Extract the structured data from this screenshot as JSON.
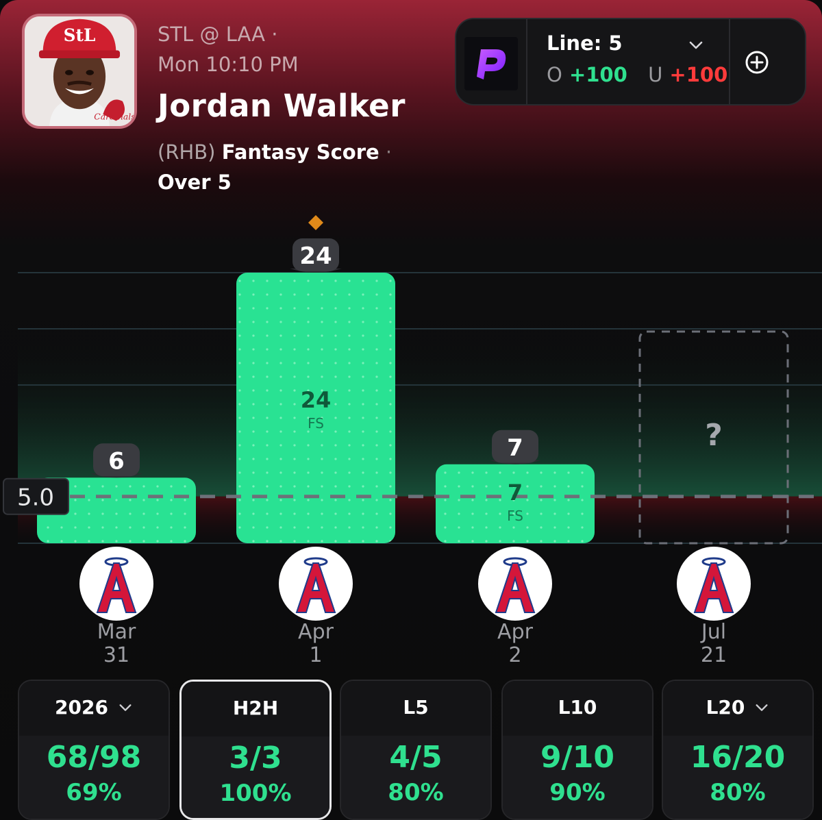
{
  "header": {
    "matchup": "STL @ LAA ·",
    "game_time": "Mon 10:10 PM",
    "player_name": "Jordan Walker",
    "handedness": "(RHB)",
    "stat_type": "Fantasy Score",
    "separator": "·",
    "pick": "Over 5"
  },
  "book": {
    "logo_icon": "prizepicks-logo-icon",
    "line_label": "Line: 5",
    "over_label": "O",
    "over_odds": "+100",
    "under_label": "U",
    "under_odds": "+100",
    "add_icon": "plus-circle-icon",
    "chevron_icon": "chevron-down-icon"
  },
  "colors": {
    "accent_green": "#2fe08f",
    "under_red": "#ff3b3b",
    "bar_green": "#29e293",
    "marker_orange": "#e08a1a"
  },
  "chart_data": {
    "type": "bar",
    "categories": [
      "Mar 31",
      "Apr 1",
      "Apr 2",
      "Jul 21"
    ],
    "values": [
      6,
      24,
      7,
      null
    ],
    "line": 5.0,
    "line_label": "5.0",
    "bar_unit_label": "FS",
    "upcoming_label": "?",
    "ylim": [
      0,
      25
    ],
    "gridlines": true,
    "opponent": "LAA"
  },
  "games": [
    {
      "month": "Mar",
      "day": "31",
      "value": "6",
      "fs_label": ""
    },
    {
      "month": "Apr",
      "day": "1",
      "value": "24",
      "fs_label": "FS"
    },
    {
      "month": "Apr",
      "day": "2",
      "value": "7",
      "fs_label": "FS"
    },
    {
      "month": "Jul",
      "day": "21",
      "value": "?",
      "fs_label": ""
    }
  ],
  "tiles": [
    {
      "label": "2026",
      "fraction": "68/98",
      "percent": "69%",
      "dropdown": true,
      "selected": false
    },
    {
      "label": "H2H",
      "fraction": "3/3",
      "percent": "100%",
      "dropdown": false,
      "selected": true
    },
    {
      "label": "L5",
      "fraction": "4/5",
      "percent": "80%",
      "dropdown": false,
      "selected": false
    },
    {
      "label": "L10",
      "fraction": "9/10",
      "percent": "90%",
      "dropdown": false,
      "selected": false
    },
    {
      "label": "L20",
      "fraction": "16/20",
      "percent": "80%",
      "dropdown": true,
      "selected": false
    }
  ]
}
